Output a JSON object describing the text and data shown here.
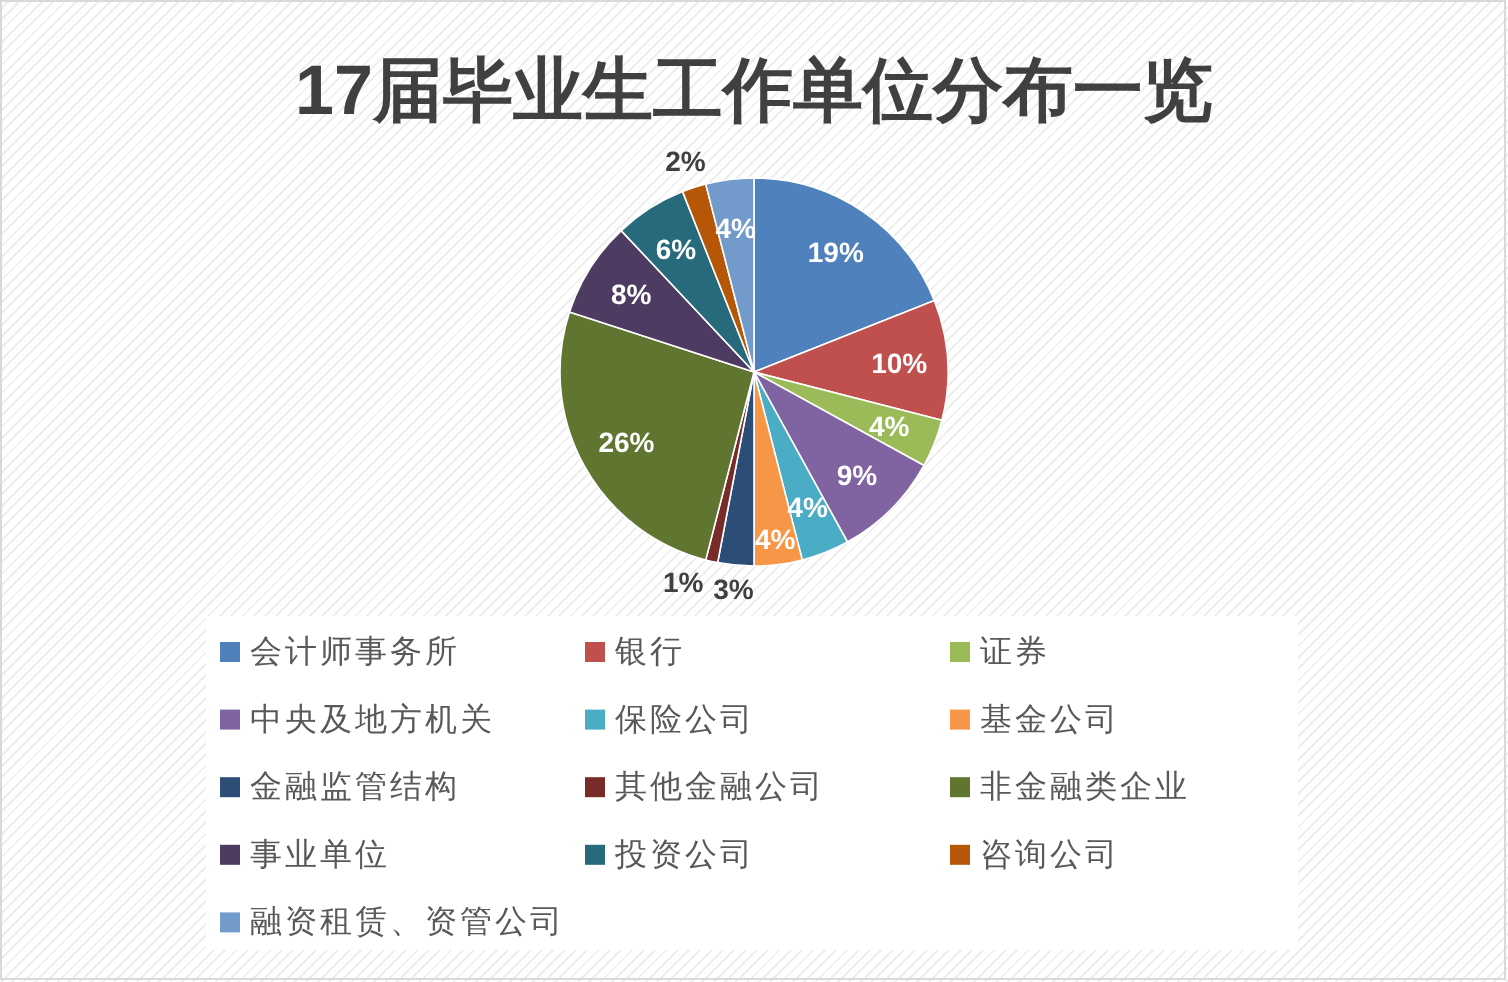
{
  "chart_data": {
    "type": "pie",
    "title": "17届毕业生工作单位分布一览",
    "categories": [
      "会计师事务所",
      "银行",
      "证券",
      "中央及地方机关",
      "保险公司",
      "基金公司",
      "金融监管结构",
      "其他金融公司",
      "非金融类企业",
      "事业单位",
      "投资公司",
      "咨询公司",
      "融资租赁、资管公司"
    ],
    "values": [
      19,
      10,
      4,
      9,
      4,
      4,
      3,
      1,
      26,
      8,
      6,
      2,
      4
    ],
    "colors": [
      "#4f81bd",
      "#c0504d",
      "#9bbb59",
      "#8064a2",
      "#4bacc6",
      "#f79646",
      "#2c4d75",
      "#772c2a",
      "#5f7530",
      "#4d3b62",
      "#276a7c",
      "#b65708",
      "#729aca"
    ],
    "value_labels": [
      "19%",
      "10%",
      "4%",
      "9%",
      "4%",
      "4%",
      "3%",
      "1%",
      "26%",
      "8%",
      "6%",
      "2%",
      "4%"
    ],
    "legend": "bottom"
  }
}
